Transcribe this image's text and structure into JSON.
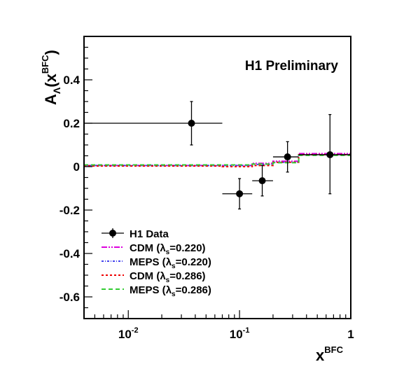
{
  "chart_data": {
    "type": "scatter",
    "x_scale": "log",
    "xlim": [
      0.004,
      1
    ],
    "ylim": [
      -0.7,
      0.6
    ],
    "annotation": "H1 Preliminary",
    "xlabel": {
      "main": "x",
      "sup": "BFC"
    },
    "ylabel": {
      "main": "A",
      "sub": "Λ",
      "open": "(x",
      "sup": "BFC",
      "close": ")"
    },
    "x_ticks": [
      {
        "value": 0.01,
        "base": "10",
        "exp": "-2"
      },
      {
        "value": 0.1,
        "base": "10",
        "exp": "-1"
      },
      {
        "value": 1,
        "base": "1",
        "exp": ""
      }
    ],
    "y_ticks": [
      {
        "value": 0.4,
        "label": "0.4"
      },
      {
        "value": 0.2,
        "label": "0.2"
      },
      {
        "value": 0,
        "label": "0"
      },
      {
        "value": -0.2,
        "label": "-0.2"
      },
      {
        "value": -0.4,
        "label": "-0.4"
      },
      {
        "value": -0.6,
        "label": "-0.6"
      }
    ],
    "data": {
      "name": "H1 Data",
      "color": "#000000",
      "points": [
        {
          "x": 0.037,
          "y": 0.2,
          "xlow": 0.004,
          "xhigh": 0.07,
          "ylow": 0.1,
          "yhigh": 0.3
        },
        {
          "x": 0.1,
          "y": -0.125,
          "xlow": 0.07,
          "xhigh": 0.13,
          "ylow": -0.195,
          "yhigh": -0.055
        },
        {
          "x": 0.16,
          "y": -0.065,
          "xlow": 0.13,
          "xhigh": 0.2,
          "ylow": -0.135,
          "yhigh": 0.005
        },
        {
          "x": 0.27,
          "y": 0.045,
          "xlow": 0.2,
          "xhigh": 0.34,
          "ylow": -0.025,
          "yhigh": 0.115
        },
        {
          "x": 0.65,
          "y": 0.055,
          "xlow": 0.34,
          "xhigh": 1.0,
          "ylow": -0.125,
          "yhigh": 0.24
        }
      ]
    },
    "bin_edges": [
      0.004,
      0.07,
      0.13,
      0.2,
      0.34,
      1.0
    ],
    "series": [
      {
        "label": "CDM (",
        "lambda": "λ",
        "sub": "s",
        "value": "=0.220)",
        "color": "#dd00dd",
        "dash": "8,2,2,2,2,2",
        "values": [
          0.005,
          0.005,
          0.015,
          0.025,
          0.06
        ]
      },
      {
        "label": "MEPS (",
        "lambda": "λ",
        "sub": "s",
        "value": "=0.220)",
        "color": "#4444ee",
        "dash": "3,2,1,2",
        "values": [
          0.005,
          0.005,
          0.01,
          0.02,
          0.055
        ]
      },
      {
        "label": "CDM (",
        "lambda": "λ",
        "sub": "s",
        "value": "=0.286)",
        "color": "#ee0000",
        "dash": "3,3",
        "values": [
          0.003,
          0.0,
          0.005,
          0.02,
          0.055
        ]
      },
      {
        "label": "MEPS (",
        "lambda": "λ",
        "sub": "s",
        "value": "=0.286)",
        "color": "#33cc33",
        "dash": "6,4",
        "values": [
          0.008,
          0.008,
          0.012,
          0.018,
          0.052
        ]
      }
    ]
  }
}
